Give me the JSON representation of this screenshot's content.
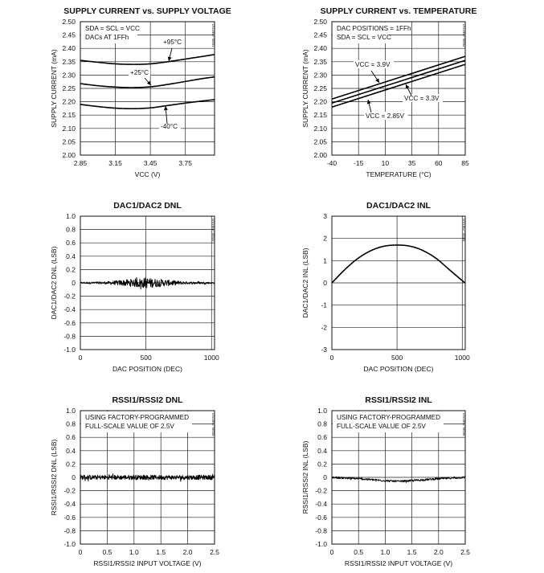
{
  "chart_data": [
    {
      "id": "supply-vs-voltage",
      "type": "line",
      "title": "SUPPLY CURRENT vs. SUPPLY VOLTAGE",
      "xlabel": "VCC (V)",
      "ylabel": "SUPPLY CURRENT (mA)",
      "xlim": [
        2.85,
        4.0
      ],
      "ylim": [
        2.0,
        2.5
      ],
      "xticks": [
        2.85,
        3.15,
        3.45,
        3.75
      ],
      "xtick_labels": [
        "2.85",
        "3.15",
        "3.45",
        "3.75"
      ],
      "yticks": [
        2.0,
        2.05,
        2.1,
        2.15,
        2.2,
        2.25,
        2.3,
        2.35,
        2.4,
        2.45,
        2.5
      ],
      "ytick_labels": [
        "2.00",
        "2.05",
        "2.10",
        "2.15",
        "2.20",
        "2.25",
        "2.30",
        "2.35",
        "2.40",
        "2.45",
        "2.50"
      ],
      "notes": [
        "SDA = SCL = VCC",
        "DACs AT 1FFh"
      ],
      "watermark": "DS1857 toc01",
      "series": [
        {
          "name": "+95°C",
          "x": [
            2.85,
            3.0,
            3.15,
            3.3,
            3.45,
            3.6,
            3.75,
            3.9,
            4.0
          ],
          "y": [
            2.355,
            2.348,
            2.342,
            2.34,
            2.342,
            2.35,
            2.36,
            2.37,
            2.377
          ]
        },
        {
          "name": "+25°C",
          "x": [
            2.85,
            3.0,
            3.15,
            3.3,
            3.45,
            3.6,
            3.75,
            3.9,
            4.0
          ],
          "y": [
            2.268,
            2.26,
            2.255,
            2.253,
            2.256,
            2.265,
            2.276,
            2.287,
            2.293
          ]
        },
        {
          "name": "-40°C",
          "x": [
            2.85,
            3.0,
            3.15,
            3.3,
            3.45,
            3.6,
            3.75,
            3.9,
            4.0
          ],
          "y": [
            2.19,
            2.182,
            2.176,
            2.174,
            2.177,
            2.186,
            2.195,
            2.203,
            2.208
          ]
        }
      ]
    },
    {
      "id": "supply-vs-temperature",
      "type": "line",
      "title": "SUPPLY CURRENT vs. TEMPERATURE",
      "xlabel": "TEMPERATURE (°C)",
      "ylabel": "SUPPLY CURRENT (mA)",
      "xlim": [
        -40,
        85
      ],
      "ylim": [
        2.0,
        2.5
      ],
      "xticks": [
        -40,
        -15,
        10,
        35,
        60,
        85
      ],
      "xtick_labels": [
        "-40",
        "-15",
        "10",
        "35",
        "60",
        "85"
      ],
      "yticks": [
        2.0,
        2.05,
        2.1,
        2.15,
        2.2,
        2.25,
        2.3,
        2.35,
        2.4,
        2.45,
        2.5
      ],
      "ytick_labels": [
        "2.00",
        "2.05",
        "2.10",
        "2.15",
        "2.20",
        "2.25",
        "2.30",
        "2.35",
        "2.40",
        "2.45",
        "2.50"
      ],
      "notes": [
        "DAC POSITIONS = 1FFh",
        "SDA = SCL = VCC"
      ],
      "watermark": "DS1857 toc02",
      "series": [
        {
          "name": "VCC = 3.9V",
          "x": [
            -40,
            85
          ],
          "y": [
            2.21,
            2.37
          ]
        },
        {
          "name": "VCC = 3.3V",
          "x": [
            -40,
            85
          ],
          "y": [
            2.195,
            2.355
          ]
        },
        {
          "name": "VCC = 2.85V",
          "x": [
            -40,
            85
          ],
          "y": [
            2.18,
            2.34
          ]
        }
      ]
    },
    {
      "id": "dac-dnl",
      "type": "line",
      "title": "DAC1/DAC2 DNL",
      "xlabel": "DAC POSITION (DEC)",
      "ylabel": "DAC1/DAC2 DNL (LSB)",
      "xlim": [
        0,
        1023
      ],
      "ylim": [
        -1.0,
        1.0
      ],
      "xticks": [
        0,
        500,
        1000
      ],
      "xtick_labels": [
        "0",
        "500",
        "1000"
      ],
      "yticks": [
        -1.0,
        -0.8,
        -0.6,
        -0.4,
        -0.2,
        0,
        0.2,
        0.4,
        0.6,
        0.8,
        1.0
      ],
      "ytick_labels": [
        "-1.0",
        "-0.8",
        "-0.6",
        "-0.4",
        "-0.2",
        "0",
        "0.2",
        "0.4",
        "0.6",
        "0.8",
        "1.0"
      ],
      "notes": [],
      "watermark": "DS1857 toc03",
      "series": [
        {
          "name": "DNL",
          "noise": true,
          "x_start": 0,
          "x_end": 1023,
          "base": 0,
          "amplitude_envelope_x": [
            0,
            200,
            350,
            500,
            650,
            800,
            1023
          ],
          "amplitude_envelope": [
            0.012,
            0.02,
            0.05,
            0.08,
            0.05,
            0.02,
            0.012
          ]
        }
      ]
    },
    {
      "id": "dac-inl",
      "type": "line",
      "title": "DAC1/DAC2 INL",
      "xlabel": "DAC POSITION (DEC)",
      "ylabel": "DAC1/DAC2 INL (LSB)",
      "xlim": [
        0,
        1023
      ],
      "ylim": [
        -3,
        3
      ],
      "xticks": [
        0,
        500,
        1000
      ],
      "xtick_labels": [
        "0",
        "500",
        "1000"
      ],
      "yticks": [
        -3,
        -2,
        -1,
        0,
        1,
        2,
        3
      ],
      "ytick_labels": [
        "-3",
        "-2",
        "-1",
        "0",
        "1",
        "2",
        "3"
      ],
      "notes": [],
      "watermark": "DS1857 toc04",
      "series": [
        {
          "name": "INL",
          "x": [
            0,
            100,
            200,
            300,
            400,
            500,
            600,
            700,
            800,
            900,
            1000,
            1023
          ],
          "y": [
            0,
            0.6,
            1.1,
            1.45,
            1.65,
            1.7,
            1.65,
            1.45,
            1.1,
            0.6,
            0.1,
            0
          ]
        }
      ]
    },
    {
      "id": "rssi-dnl",
      "type": "line",
      "title": "RSSI1/RSSI2 DNL",
      "xlabel": "RSSI1/RSSI2 INPUT VOLTAGE (V)",
      "ylabel": "RSSI1/RSSI2 DNL (LSB)",
      "xlim": [
        0,
        2.5
      ],
      "ylim": [
        -1.0,
        1.0
      ],
      "xticks": [
        0,
        0.5,
        1.0,
        1.5,
        2.0,
        2.5
      ],
      "xtick_labels": [
        "0",
        "0.5",
        "1.0",
        "1.5",
        "2.0",
        "2.5"
      ],
      "yticks": [
        -1.0,
        -0.8,
        -0.6,
        -0.4,
        -0.2,
        0,
        0.2,
        0.4,
        0.6,
        0.8,
        1.0
      ],
      "ytick_labels": [
        "-1.0",
        "-0.8",
        "-0.6",
        "-0.4",
        "-0.2",
        "0",
        "0.2",
        "0.4",
        "0.6",
        "0.8",
        "1.0"
      ],
      "notes": [
        "USING FACTORY-PROGRAMMED",
        "FULL-SCALE VALUE OF 2.5V"
      ],
      "watermark": "DS1857 toc05",
      "series": [
        {
          "name": "DNL",
          "noise": true,
          "x_start": 0,
          "x_end": 2.5,
          "base": 0,
          "amplitude_envelope_x": [
            0,
            2.5
          ],
          "amplitude_envelope": [
            0.035,
            0.035
          ]
        }
      ]
    },
    {
      "id": "rssi-inl",
      "type": "line",
      "title": "RSSI1/RSSI2 INL",
      "xlabel": "RSSI1/RSSI2 INPUT VOLTAGE (V)",
      "ylabel": "RSSI1/RSSI2 INL (LSB)",
      "xlim": [
        0,
        2.5
      ],
      "ylim": [
        -1.0,
        1.0
      ],
      "xticks": [
        0,
        0.5,
        1.0,
        1.5,
        2.0,
        2.5
      ],
      "xtick_labels": [
        "0",
        "0.5",
        "1.0",
        "1.5",
        "2.0",
        "2.5"
      ],
      "yticks": [
        -1.0,
        -0.8,
        -0.6,
        -0.4,
        -0.2,
        0,
        0.2,
        0.4,
        0.6,
        0.8,
        1.0
      ],
      "ytick_labels": [
        "-1.0",
        "-0.8",
        "-0.6",
        "-0.4",
        "-0.2",
        "0",
        "0.2",
        "0.4",
        "0.6",
        "0.8",
        "1.0"
      ],
      "notes": [
        "USING FACTORY-PROGRAMMED",
        "FULL-SCALE VALUE OF 2.5V"
      ],
      "watermark": "DS1857 toc06",
      "series": [
        {
          "name": "INL",
          "noise": true,
          "x_start": 0,
          "x_end": 2.5,
          "base_x": [
            0,
            0.5,
            1.0,
            1.25,
            1.5,
            2.0,
            2.5
          ],
          "base_y": [
            0,
            -0.02,
            -0.05,
            -0.06,
            -0.05,
            -0.02,
            0
          ],
          "amplitude_envelope_x": [
            0,
            2.5
          ],
          "amplitude_envelope": [
            0.015,
            0.015
          ]
        }
      ]
    }
  ]
}
